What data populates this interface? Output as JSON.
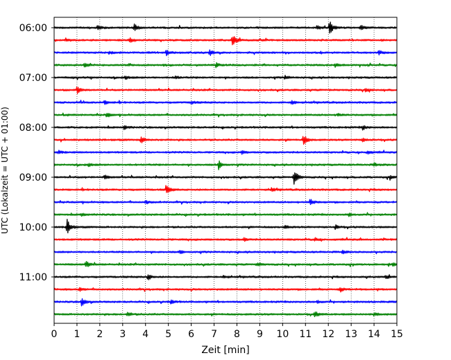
{
  "chart_data": {
    "type": "line",
    "title": "",
    "xlabel": "Zeit  [min]",
    "ylabel": "UTC (Lokalzeit = UTC + 01:00)",
    "xlim": [
      0,
      15
    ],
    "x_ticks": [
      "0",
      "1",
      "2",
      "3",
      "4",
      "5",
      "6",
      "7",
      "8",
      "9",
      "10",
      "11",
      "12",
      "13",
      "14",
      "15"
    ],
    "y_ticks": [
      "06:00",
      "07:00",
      "08:00",
      "09:00",
      "10:00",
      "11:00"
    ],
    "grid": "vertical dotted at each minute",
    "trace_interval_minutes": 15,
    "color_cycle": [
      "#000000",
      "#ff0000",
      "#0000ff",
      "#008000"
    ],
    "traces": [
      {
        "start": "06:00",
        "color": "#000000",
        "events": [
          {
            "t": 3.5,
            "amp": 0.9
          },
          {
            "t": 12.05,
            "amp": 1.3
          },
          {
            "t": 13.4,
            "amp": 0.5
          },
          {
            "t": 1.9,
            "amp": 0.4
          },
          {
            "t": 11.5,
            "amp": 0.35
          }
        ]
      },
      {
        "start": "06:15",
        "color": "#ff0000",
        "events": [
          {
            "t": 7.8,
            "amp": 1.2
          },
          {
            "t": 3.3,
            "amp": 0.4
          },
          {
            "t": 0.5,
            "amp": 0.3
          }
        ]
      },
      {
        "start": "06:30",
        "color": "#0000ff",
        "events": [
          {
            "t": 4.9,
            "amp": 0.5
          },
          {
            "t": 6.8,
            "amp": 0.6
          },
          {
            "t": 14.2,
            "amp": 0.4
          },
          {
            "t": 2.4,
            "amp": 0.3
          }
        ]
      },
      {
        "start": "06:45",
        "color": "#008000",
        "events": [
          {
            "t": 1.3,
            "amp": 0.4
          },
          {
            "t": 7.1,
            "amp": 0.35
          },
          {
            "t": 12.3,
            "amp": 0.3
          }
        ]
      },
      {
        "start": "07:00",
        "color": "#000000",
        "events": [
          {
            "t": 3.1,
            "amp": 0.35
          },
          {
            "t": 5.3,
            "amp": 0.3
          },
          {
            "t": 10.1,
            "amp": 0.3
          }
        ]
      },
      {
        "start": "07:15",
        "color": "#ff0000",
        "events": [
          {
            "t": 1.0,
            "amp": 0.6
          },
          {
            "t": 13.6,
            "amp": 0.35
          }
        ]
      },
      {
        "start": "07:30",
        "color": "#0000ff",
        "events": [
          {
            "t": 10.4,
            "amp": 0.45
          },
          {
            "t": 2.2,
            "amp": 0.3
          },
          {
            "t": 6.0,
            "amp": 0.3
          }
        ]
      },
      {
        "start": "07:45",
        "color": "#008000",
        "events": [
          {
            "t": 2.3,
            "amp": 0.45
          },
          {
            "t": 12.4,
            "amp": 0.3
          }
        ]
      },
      {
        "start": "08:00",
        "color": "#000000",
        "events": [
          {
            "t": 3.05,
            "amp": 0.4
          },
          {
            "t": 13.5,
            "amp": 0.4
          }
        ]
      },
      {
        "start": "08:15",
        "color": "#ff0000",
        "events": [
          {
            "t": 10.9,
            "amp": 1.0
          },
          {
            "t": 3.8,
            "amp": 0.6
          },
          {
            "t": 13.5,
            "amp": 0.3
          }
        ]
      },
      {
        "start": "08:30",
        "color": "#0000ff",
        "events": [
          {
            "t": 0.2,
            "amp": 0.35
          },
          {
            "t": 8.2,
            "amp": 0.3
          },
          {
            "t": 13.7,
            "amp": 0.3
          }
        ]
      },
      {
        "start": "08:45",
        "color": "#008000",
        "events": [
          {
            "t": 7.2,
            "amp": 0.8
          },
          {
            "t": 1.5,
            "amp": 0.3
          },
          {
            "t": 14.0,
            "amp": 0.3
          }
        ]
      },
      {
        "start": "09:00",
        "color": "#000000",
        "events": [
          {
            "t": 10.5,
            "amp": 1.5
          },
          {
            "t": 2.2,
            "amp": 0.35
          },
          {
            "t": 14.7,
            "amp": 0.3
          }
        ]
      },
      {
        "start": "09:15",
        "color": "#ff0000",
        "events": [
          {
            "t": 4.9,
            "amp": 1.0
          },
          {
            "t": 9.5,
            "amp": 0.3
          }
        ]
      },
      {
        "start": "09:30",
        "color": "#0000ff",
        "events": [
          {
            "t": 11.2,
            "amp": 0.6
          },
          {
            "t": 4.0,
            "amp": 0.3
          }
        ]
      },
      {
        "start": "09:45",
        "color": "#008000",
        "events": [
          {
            "t": 1.2,
            "amp": 0.3
          },
          {
            "t": 12.9,
            "amp": 0.3
          }
        ]
      },
      {
        "start": "10:00",
        "color": "#000000",
        "events": [
          {
            "t": 0.55,
            "amp": 1.5
          },
          {
            "t": 12.3,
            "amp": 0.4
          },
          {
            "t": 10.1,
            "amp": 0.3
          }
        ]
      },
      {
        "start": "10:15",
        "color": "#ff0000",
        "events": [
          {
            "t": 8.3,
            "amp": 0.3
          },
          {
            "t": 11.4,
            "amp": 0.3
          }
        ]
      },
      {
        "start": "10:30",
        "color": "#0000ff",
        "events": [
          {
            "t": 5.5,
            "amp": 0.3
          },
          {
            "t": 12.6,
            "amp": 0.3
          }
        ]
      },
      {
        "start": "10:45",
        "color": "#008000",
        "events": [
          {
            "t": 1.4,
            "amp": 0.6
          },
          {
            "t": 14.8,
            "amp": 0.35
          },
          {
            "t": 8.9,
            "amp": 0.3
          }
        ]
      },
      {
        "start": "11:00",
        "color": "#000000",
        "events": [
          {
            "t": 4.1,
            "amp": 0.6
          },
          {
            "t": 14.5,
            "amp": 0.35
          },
          {
            "t": 7.4,
            "amp": 0.3
          }
        ]
      },
      {
        "start": "11:15",
        "color": "#ff0000",
        "events": [
          {
            "t": 12.5,
            "amp": 0.45
          },
          {
            "t": 1.1,
            "amp": 0.3
          }
        ]
      },
      {
        "start": "11:30",
        "color": "#0000ff",
        "events": [
          {
            "t": 1.2,
            "amp": 0.8
          },
          {
            "t": 5.1,
            "amp": 0.4
          },
          {
            "t": 11.5,
            "amp": 0.3
          }
        ]
      },
      {
        "start": "11:45",
        "color": "#008000",
        "events": [
          {
            "t": 11.4,
            "amp": 0.55
          },
          {
            "t": 3.2,
            "amp": 0.45
          },
          {
            "t": 14.0,
            "amp": 0.3
          }
        ]
      }
    ]
  }
}
